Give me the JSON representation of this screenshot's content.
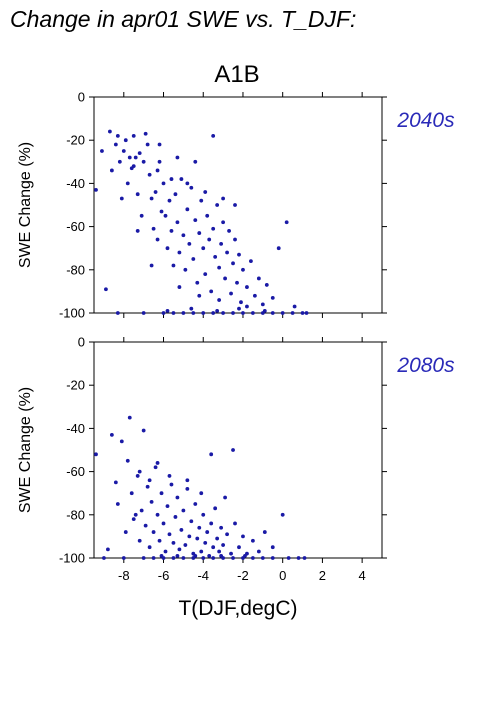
{
  "page_title": "Change in apr01 SWE vs. T_DJF:",
  "scenario_label": "A1B",
  "colors": {
    "points": "#1a1aa6",
    "period_label": "#2a2ab8"
  },
  "chart_data": [
    {
      "type": "scatter",
      "period": "2040s",
      "ylabel": "SWE Change (%)",
      "xlabel": "",
      "xlim": [
        -9.5,
        5
      ],
      "ylim": [
        -100,
        0
      ],
      "x_ticks": [
        -8,
        -6,
        -4,
        -2,
        0,
        2,
        4
      ],
      "y_ticks": [
        0,
        -20,
        -40,
        -60,
        -80,
        -100
      ],
      "points": [
        [
          -9.4,
          -43
        ],
        [
          -9.1,
          -25
        ],
        [
          -8.9,
          -89
        ],
        [
          -8.7,
          -16
        ],
        [
          -8.6,
          -34
        ],
        [
          -8.4,
          -22
        ],
        [
          -8.3,
          -18
        ],
        [
          -8.2,
          -30
        ],
        [
          -8.1,
          -47
        ],
        [
          -8.0,
          -25
        ],
        [
          -7.9,
          -20
        ],
        [
          -7.8,
          -40
        ],
        [
          -7.7,
          -28
        ],
        [
          -7.6,
          -33
        ],
        [
          -7.5,
          -18
        ],
        [
          -7.4,
          -28
        ],
        [
          -7.3,
          -45
        ],
        [
          -7.2,
          -26
        ],
        [
          -7.1,
          -55
        ],
        [
          -7.0,
          -30
        ],
        [
          -6.9,
          -17
        ],
        [
          -6.8,
          -22
        ],
        [
          -6.7,
          -36
        ],
        [
          -6.6,
          -47
        ],
        [
          -6.5,
          -61
        ],
        [
          -6.4,
          -44
        ],
        [
          -6.3,
          -66
        ],
        [
          -6.2,
          -30
        ],
        [
          -6.1,
          -53
        ],
        [
          -6.0,
          -40
        ],
        [
          -5.9,
          -55
        ],
        [
          -5.8,
          -70
        ],
        [
          -5.7,
          -48
        ],
        [
          -5.6,
          -62
        ],
        [
          -5.5,
          -78
        ],
        [
          -5.4,
          -45
        ],
        [
          -5.3,
          -58
        ],
        [
          -5.2,
          -72
        ],
        [
          -5.1,
          -38
        ],
        [
          -5.0,
          -64
        ],
        [
          -4.9,
          -80
        ],
        [
          -4.8,
          -52
        ],
        [
          -4.7,
          -68
        ],
        [
          -4.6,
          -42
        ],
        [
          -4.5,
          -75
        ],
        [
          -4.4,
          -57
        ],
        [
          -4.3,
          -86
        ],
        [
          -4.2,
          -63
        ],
        [
          -4.1,
          -48
        ],
        [
          -4.0,
          -70
        ],
        [
          -3.9,
          -82
        ],
        [
          -3.8,
          -55
        ],
        [
          -3.7,
          -66
        ],
        [
          -3.6,
          -90
        ],
        [
          -3.5,
          -61
        ],
        [
          -3.4,
          -74
        ],
        [
          -3.3,
          -50
        ],
        [
          -3.2,
          -79
        ],
        [
          -3.1,
          -68
        ],
        [
          -3.0,
          -58
        ],
        [
          -2.9,
          -84
        ],
        [
          -2.8,
          -72
        ],
        [
          -2.7,
          -62
        ],
        [
          -2.6,
          -91
        ],
        [
          -2.5,
          -77
        ],
        [
          -2.4,
          -66
        ],
        [
          -2.3,
          -86
        ],
        [
          -2.2,
          -73
        ],
        [
          -2.1,
          -95
        ],
        [
          -2.0,
          -80
        ],
        [
          -1.8,
          -88
        ],
        [
          -1.6,
          -76
        ],
        [
          -1.4,
          -92
        ],
        [
          -1.2,
          -84
        ],
        [
          -1.0,
          -96
        ],
        [
          -0.8,
          -87
        ],
        [
          -0.5,
          -93
        ],
        [
          -0.2,
          -70
        ],
        [
          0.2,
          -58
        ],
        [
          0.6,
          -97
        ],
        [
          -6.3,
          -34
        ],
        [
          -5.6,
          -38
        ],
        [
          -4.8,
          -40
        ],
        [
          -3.9,
          -44
        ],
        [
          -3.0,
          -47
        ],
        [
          -2.4,
          -50
        ],
        [
          -3.5,
          -18
        ],
        [
          -8.3,
          -100
        ],
        [
          -7.0,
          -100
        ],
        [
          -6.0,
          -100
        ],
        [
          -5.5,
          -100
        ],
        [
          -5.0,
          -100
        ],
        [
          -4.5,
          -100
        ],
        [
          -4.0,
          -100
        ],
        [
          -3.5,
          -100
        ],
        [
          -3.0,
          -100
        ],
        [
          -2.5,
          -100
        ],
        [
          -2.0,
          -100
        ],
        [
          -1.5,
          -100
        ],
        [
          -1.0,
          -100
        ],
        [
          -0.5,
          -100
        ],
        [
          0.0,
          -100
        ],
        [
          0.5,
          -100
        ],
        [
          1.0,
          -100
        ],
        [
          1.2,
          -100
        ],
        [
          -5.8,
          -99
        ],
        [
          -4.6,
          -98
        ],
        [
          -3.3,
          -99
        ],
        [
          -2.2,
          -98
        ],
        [
          -0.9,
          -99
        ],
        [
          -7.3,
          -62
        ],
        [
          -6.6,
          -78
        ],
        [
          -5.2,
          -88
        ],
        [
          -4.2,
          -92
        ],
        [
          -3.2,
          -94
        ],
        [
          -1.8,
          -97
        ],
        [
          -4.4,
          -30
        ],
        [
          -5.3,
          -28
        ],
        [
          -6.2,
          -22
        ],
        [
          -7.5,
          -32
        ]
      ]
    },
    {
      "type": "scatter",
      "period": "2080s",
      "ylabel": "SWE Change (%)",
      "xlabel": "T(DJF,degC)",
      "xlim": [
        -9.5,
        5
      ],
      "ylim": [
        -100,
        0
      ],
      "x_ticks": [
        -8,
        -6,
        -4,
        -2,
        0,
        2,
        4
      ],
      "y_ticks": [
        0,
        -20,
        -40,
        -60,
        -80,
        -100
      ],
      "points": [
        [
          -9.4,
          -52
        ],
        [
          -8.8,
          -96
        ],
        [
          -8.6,
          -43
        ],
        [
          -8.4,
          -65
        ],
        [
          -8.3,
          -75
        ],
        [
          -8.1,
          -46
        ],
        [
          -7.9,
          -88
        ],
        [
          -7.8,
          -55
        ],
        [
          -7.7,
          -35
        ],
        [
          -7.6,
          -70
        ],
        [
          -7.5,
          -82
        ],
        [
          -7.3,
          -62
        ],
        [
          -7.2,
          -92
        ],
        [
          -7.1,
          -78
        ],
        [
          -7.0,
          -41
        ],
        [
          -6.9,
          -85
        ],
        [
          -6.8,
          -67
        ],
        [
          -6.7,
          -95
        ],
        [
          -6.6,
          -74
        ],
        [
          -6.5,
          -88
        ],
        [
          -6.4,
          -58
        ],
        [
          -6.3,
          -80
        ],
        [
          -6.2,
          -92
        ],
        [
          -6.1,
          -70
        ],
        [
          -6.0,
          -84
        ],
        [
          -5.9,
          -97
        ],
        [
          -5.8,
          -76
        ],
        [
          -5.7,
          -89
        ],
        [
          -5.6,
          -66
        ],
        [
          -5.5,
          -93
        ],
        [
          -5.4,
          -81
        ],
        [
          -5.3,
          -72
        ],
        [
          -5.2,
          -96
        ],
        [
          -5.1,
          -87
        ],
        [
          -5.0,
          -78
        ],
        [
          -4.9,
          -94
        ],
        [
          -4.8,
          -68
        ],
        [
          -4.7,
          -90
        ],
        [
          -4.6,
          -83
        ],
        [
          -4.5,
          -98
        ],
        [
          -4.4,
          -75
        ],
        [
          -4.3,
          -91
        ],
        [
          -4.2,
          -86
        ],
        [
          -4.1,
          -97
        ],
        [
          -4.0,
          -80
        ],
        [
          -3.9,
          -93
        ],
        [
          -3.8,
          -88
        ],
        [
          -3.7,
          -99
        ],
        [
          -3.6,
          -84
        ],
        [
          -3.5,
          -95
        ],
        [
          -3.4,
          -77
        ],
        [
          -3.3,
          -91
        ],
        [
          -3.2,
          -97
        ],
        [
          -3.1,
          -86
        ],
        [
          -3.0,
          -94
        ],
        [
          -2.8,
          -89
        ],
        [
          -2.6,
          -98
        ],
        [
          -2.4,
          -84
        ],
        [
          -2.2,
          -95
        ],
        [
          -2.0,
          -90
        ],
        [
          -1.8,
          -98
        ],
        [
          -1.5,
          -92
        ],
        [
          -1.2,
          -97
        ],
        [
          -0.9,
          -88
        ],
        [
          -0.5,
          -95
        ],
        [
          0.0,
          -80
        ],
        [
          -2.5,
          -50
        ],
        [
          -3.6,
          -52
        ],
        [
          -6.7,
          -64
        ],
        [
          -7.4,
          -80
        ],
        [
          -9.0,
          -100
        ],
        [
          -8.0,
          -100
        ],
        [
          -7.0,
          -100
        ],
        [
          -6.5,
          -100
        ],
        [
          -6.0,
          -100
        ],
        [
          -5.5,
          -100
        ],
        [
          -5.0,
          -100
        ],
        [
          -4.5,
          -100
        ],
        [
          -4.0,
          -100
        ],
        [
          -3.5,
          -100
        ],
        [
          -3.0,
          -100
        ],
        [
          -2.5,
          -100
        ],
        [
          -2.0,
          -100
        ],
        [
          -1.5,
          -100
        ],
        [
          -1.0,
          -100
        ],
        [
          -0.5,
          -100
        ],
        [
          0.3,
          -100
        ],
        [
          0.8,
          -100
        ],
        [
          1.1,
          -100
        ],
        [
          -5.3,
          -99
        ],
        [
          -4.4,
          -99
        ],
        [
          -3.1,
          -99
        ],
        [
          -1.9,
          -99
        ],
        [
          -6.1,
          -99
        ],
        [
          -7.2,
          -60
        ],
        [
          -6.3,
          -56
        ],
        [
          -5.7,
          -62
        ],
        [
          -4.8,
          -64
        ],
        [
          -4.1,
          -70
        ],
        [
          -2.9,
          -72
        ]
      ]
    }
  ]
}
